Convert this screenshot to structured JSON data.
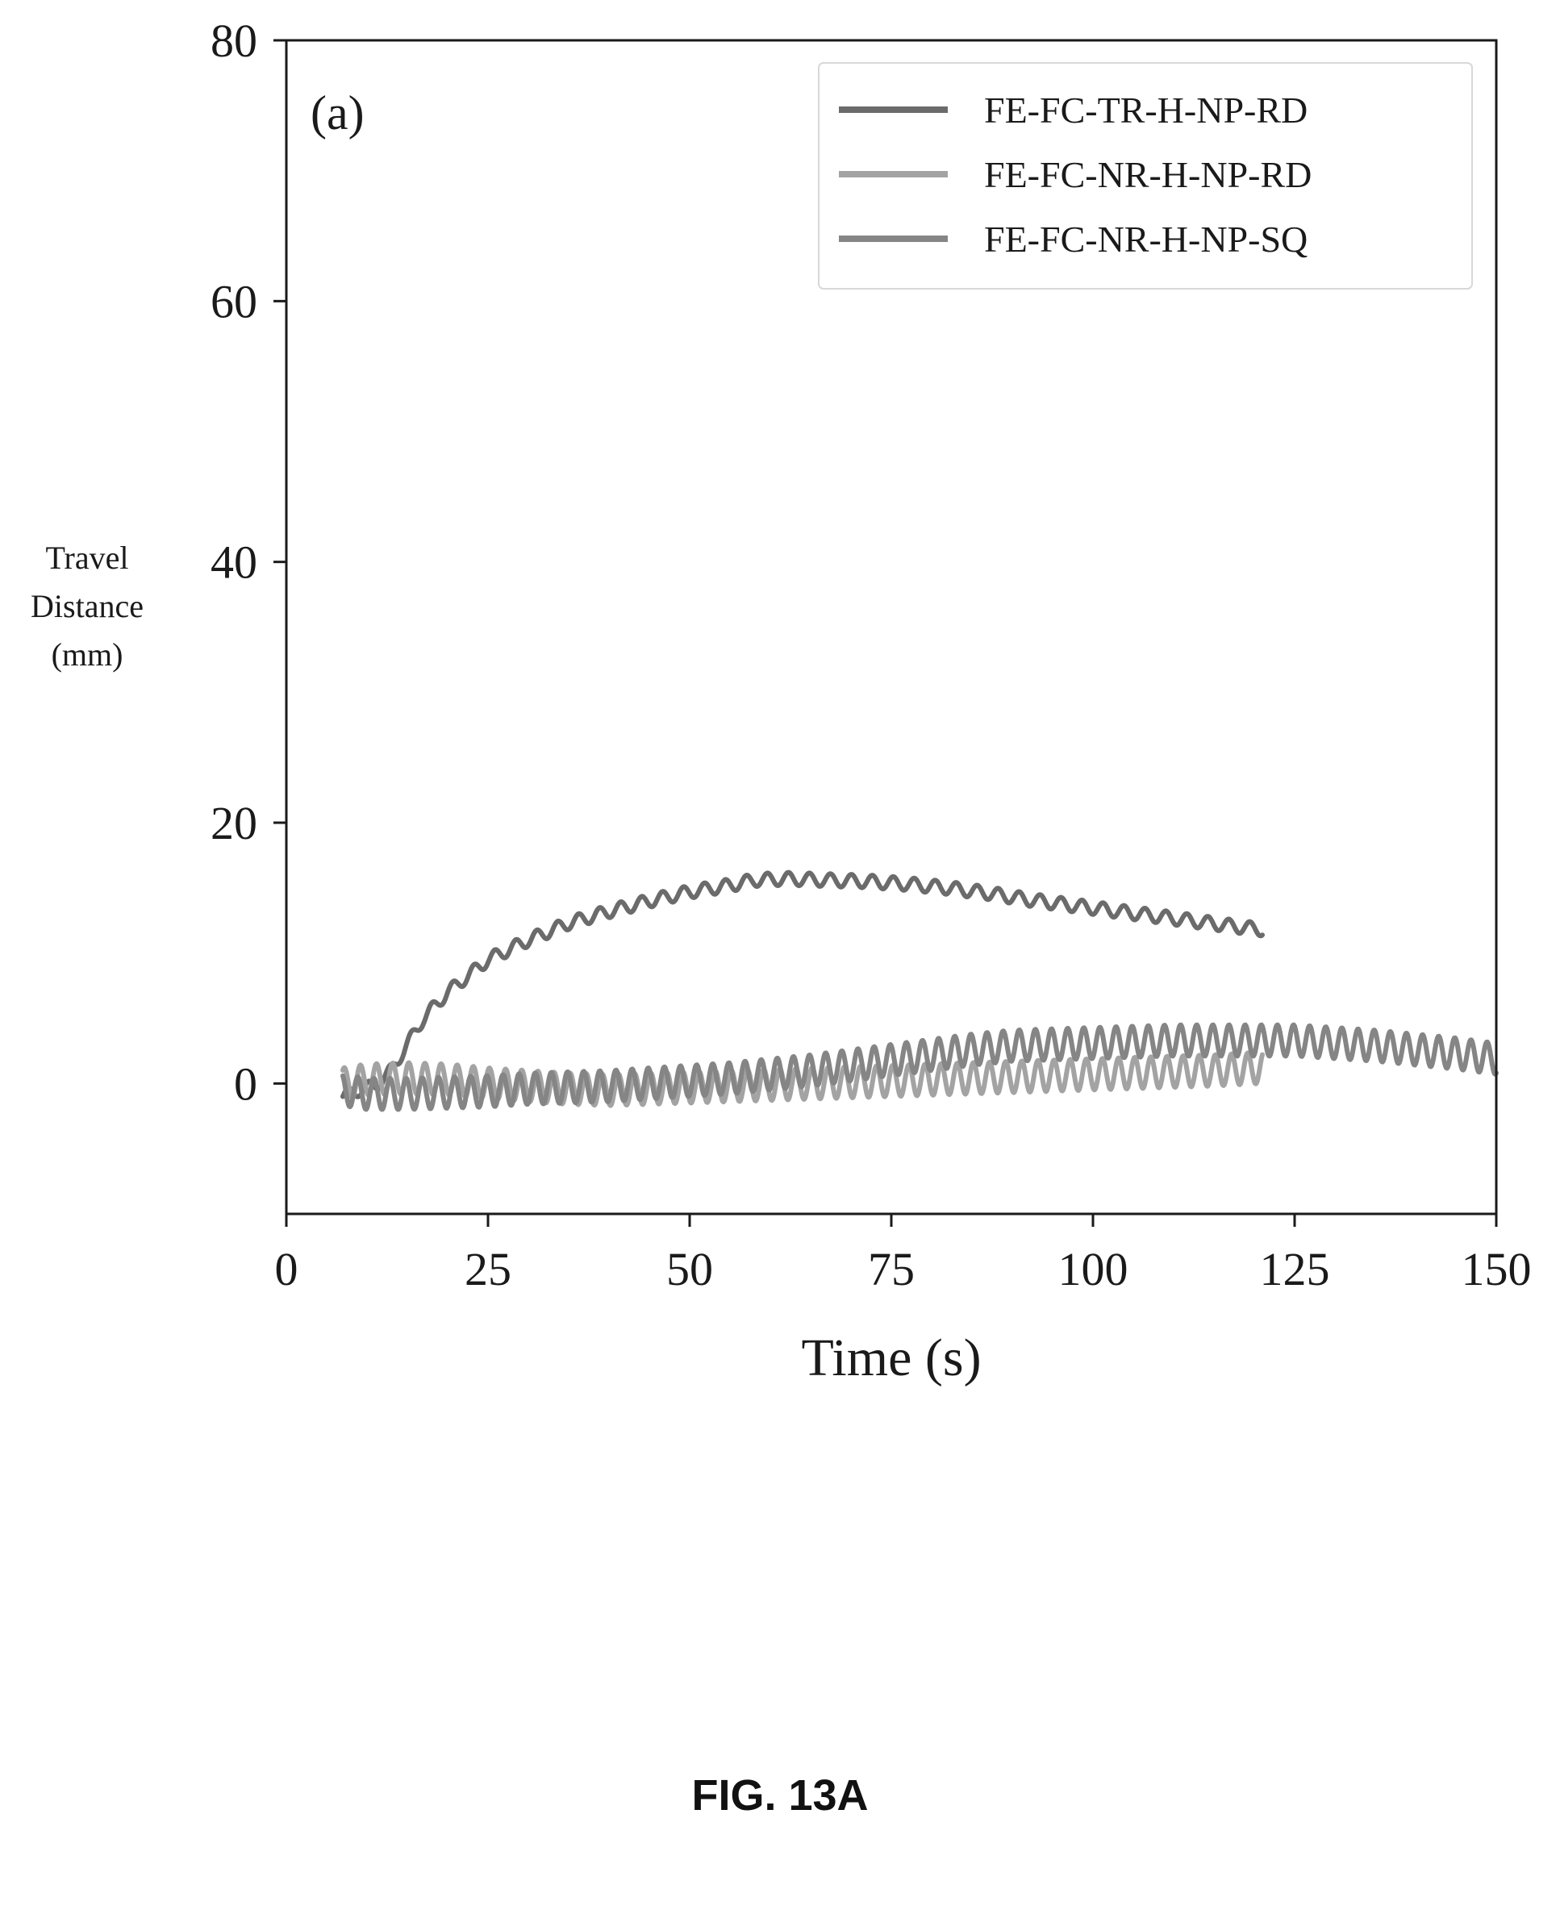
{
  "chart_data": {
    "type": "line",
    "panel_label": "(a)",
    "title": "",
    "xlabel": "Time (s)",
    "ylabel_lines": [
      "Travel",
      "Distance",
      "(mm)"
    ],
    "xlim": [
      0,
      150
    ],
    "ylim": [
      -10,
      80
    ],
    "xticks": [
      0,
      25,
      50,
      75,
      100,
      125,
      150
    ],
    "yticks": [
      0,
      20,
      40,
      60,
      80
    ],
    "grid": false,
    "legend_position": "top-right",
    "series": [
      {
        "name": "FE-FC-TR-H-NP-RD",
        "color": "#6b6b6b",
        "oscillation_amplitude": 0.5,
        "oscillation_period_s": 2.6,
        "x": [
          7,
          9,
          11,
          13,
          15,
          17,
          20,
          25,
          30,
          35,
          40,
          45,
          50,
          55,
          58,
          62,
          67,
          72,
          77,
          82,
          87,
          92,
          97,
          102,
          107,
          112,
          117,
          121
        ],
        "y": [
          -1.0,
          -0.5,
          -0.2,
          1.0,
          3.0,
          5.0,
          7.0,
          9.5,
          11.0,
          12.3,
          13.2,
          14.0,
          14.7,
          15.2,
          15.6,
          15.7,
          15.6,
          15.5,
          15.3,
          15.0,
          14.6,
          14.1,
          13.7,
          13.3,
          12.9,
          12.5,
          12.1,
          11.8
        ]
      },
      {
        "name": "FE-FC-NR-H-NP-RD",
        "color": "#a3a3a3",
        "oscillation_amplitude": 1.2,
        "oscillation_period_s": 2.0,
        "x": [
          7,
          10,
          15,
          20,
          25,
          30,
          35,
          40,
          45,
          50,
          55,
          60,
          65,
          70,
          75,
          80,
          85,
          90,
          95,
          100,
          105,
          110,
          115,
          121
        ],
        "y": [
          0.0,
          0.3,
          0.4,
          0.3,
          0.0,
          -0.2,
          -0.4,
          -0.5,
          -0.4,
          -0.3,
          -0.2,
          -0.1,
          0.0,
          0.1,
          0.2,
          0.3,
          0.4,
          0.5,
          0.6,
          0.7,
          0.8,
          0.9,
          1.0,
          1.2
        ]
      },
      {
        "name": "FE-FC-NR-H-NP-SQ",
        "color": "#858585",
        "oscillation_amplitude": 1.2,
        "oscillation_period_s": 2.0,
        "x": [
          7,
          10,
          15,
          20,
          25,
          30,
          35,
          40,
          45,
          50,
          55,
          60,
          65,
          70,
          75,
          80,
          85,
          90,
          95,
          100,
          105,
          110,
          115,
          120,
          125,
          130,
          135,
          140,
          145,
          150
        ],
        "y": [
          -0.5,
          -0.8,
          -0.8,
          -0.7,
          -0.6,
          -0.4,
          -0.3,
          -0.2,
          0.0,
          0.2,
          0.4,
          0.7,
          1.0,
          1.4,
          1.8,
          2.2,
          2.6,
          2.9,
          3.0,
          3.1,
          3.2,
          3.3,
          3.3,
          3.3,
          3.3,
          3.1,
          2.9,
          2.6,
          2.3,
          1.9
        ]
      }
    ]
  },
  "figure_caption": "FIG. 13A"
}
